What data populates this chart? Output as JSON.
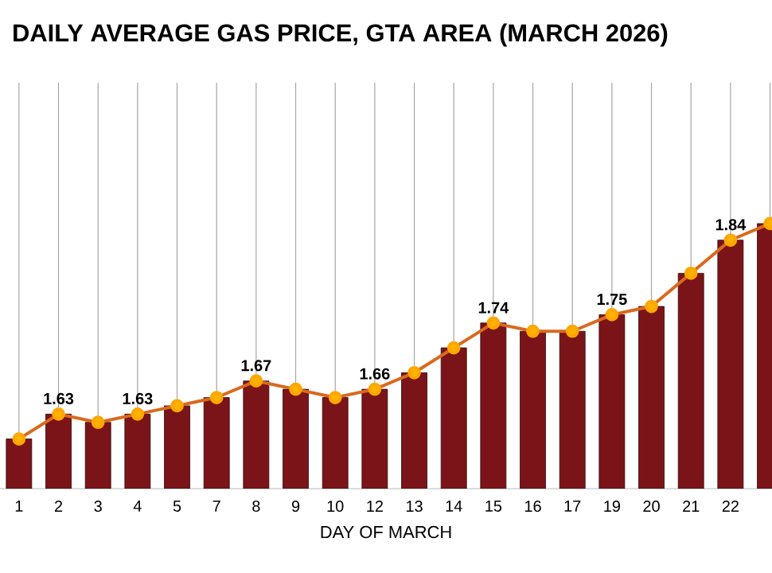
{
  "chart_data": {
    "type": "bar",
    "title": "DAILY AVERAGE GAS PRICE, GTA AREA (MARCH 2026)",
    "xlabel": "DAY OF MARCH",
    "categories": [
      "1",
      "2",
      "3",
      "4",
      "5",
      "7",
      "8",
      "9",
      "10",
      "12",
      "13",
      "14",
      "15",
      "16",
      "17",
      "19",
      "20",
      "21",
      "22",
      null
    ],
    "ylim": [
      1.54,
      2.03
    ],
    "tick_labels": "x",
    "grid": "x",
    "marker": "circle",
    "line_style": "solid",
    "series": [
      {
        "color": "#7b1418",
        "values": [
          1.6,
          1.63,
          1.62,
          1.63,
          1.64,
          1.65,
          1.67,
          1.66,
          1.65,
          1.66,
          1.68,
          1.71,
          1.74,
          1.73,
          1.73,
          1.75,
          1.76,
          1.8,
          1.84,
          1.86
        ]
      },
      {
        "type": "line",
        "color": "#d9691f",
        "values": [
          1.6,
          1.63,
          1.62,
          1.63,
          1.64,
          1.65,
          1.67,
          1.66,
          1.65,
          1.66,
          1.68,
          1.71,
          1.74,
          1.73,
          1.73,
          1.75,
          1.76,
          1.8,
          1.84,
          1.86
        ],
        "value_labels": [
          null,
          "1.63",
          null,
          "1.63",
          null,
          null,
          "1.67",
          null,
          null,
          "1.66",
          null,
          null,
          "1.74",
          null,
          null,
          "1.75",
          null,
          null,
          "1.84",
          null
        ]
      }
    ]
  }
}
